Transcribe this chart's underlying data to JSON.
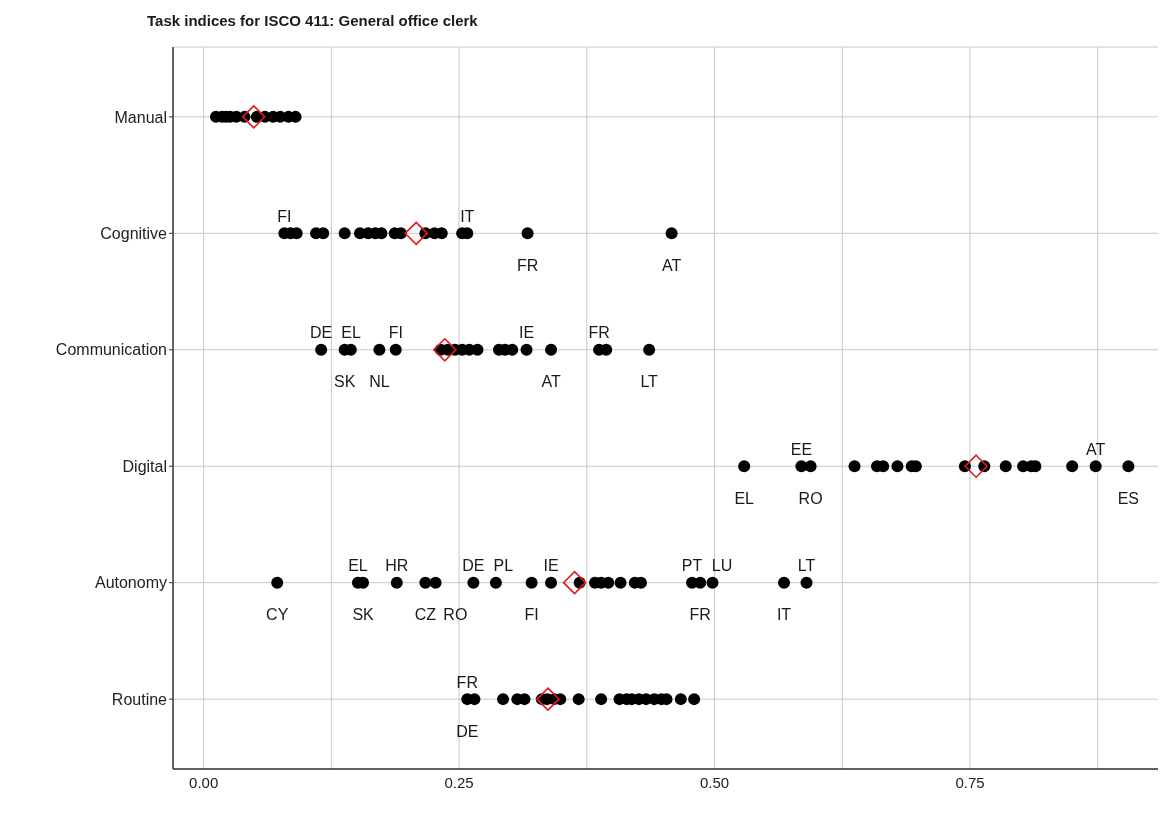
{
  "chart_data": {
    "type": "scatter",
    "title": "Task indices for ISCO 411: General office clerk",
    "orientation": "horizontal",
    "categories": [
      "Manual",
      "Cognitive",
      "Communication",
      "Digital",
      "Autonomy",
      "Routine"
    ],
    "xlim": [
      -0.03,
      0.934
    ],
    "xticks": [
      {
        "value": 0,
        "label": "0.00"
      },
      {
        "value": 0.125,
        "label": null
      },
      {
        "value": 0.25,
        "label": "0.25"
      },
      {
        "value": 0.375,
        "label": null
      },
      {
        "value": 0.5,
        "label": "0.50"
      },
      {
        "value": 0.625,
        "label": null
      },
      {
        "value": 0.75,
        "label": "0.75"
      },
      {
        "value": 0.875,
        "label": null
      }
    ],
    "grid": true,
    "series": [
      {
        "type": "scatter",
        "color": "#000000",
        "marker": "circle",
        "x": [
          "Manual",
          "Manual",
          "Manual",
          "Manual",
          "Manual",
          "Manual",
          "Manual",
          "Manual",
          "Manual",
          "Manual",
          "Manual",
          "Manual",
          "Cognitive",
          "Cognitive",
          "Cognitive",
          "Cognitive",
          "Cognitive",
          "Cognitive",
          "Cognitive",
          "Cognitive",
          "Cognitive",
          "Cognitive",
          "Cognitive",
          "Cognitive",
          "Cognitive",
          "Cognitive",
          "Cognitive",
          "Cognitive",
          "Cognitive",
          "Cognitive",
          "Cognitive",
          "Communication",
          "Communication",
          "Communication",
          "Communication",
          "Communication",
          "Communication",
          "Communication",
          "Communication",
          "Communication",
          "Communication",
          "Communication",
          "Communication",
          "Communication",
          "Communication",
          "Communication",
          "Communication",
          "Communication",
          "Communication",
          "Communication",
          "Digital",
          "Digital",
          "Digital",
          "Digital",
          "Digital",
          "Digital",
          "Digital",
          "Digital",
          "Digital",
          "Digital",
          "Digital",
          "Digital",
          "Digital",
          "Digital",
          "Digital",
          "Digital",
          "Digital",
          "Digital",
          "Autonomy",
          "Autonomy",
          "Autonomy",
          "Autonomy",
          "Autonomy",
          "Autonomy",
          "Autonomy",
          "Autonomy",
          "Autonomy",
          "Autonomy",
          "Autonomy",
          "Autonomy",
          "Autonomy",
          "Autonomy",
          "Autonomy",
          "Autonomy",
          "Autonomy",
          "Autonomy",
          "Autonomy",
          "Autonomy",
          "Autonomy",
          "Autonomy",
          "Routine",
          "Routine",
          "Routine",
          "Routine",
          "Routine",
          "Routine",
          "Routine",
          "Routine",
          "Routine",
          "Routine",
          "Routine",
          "Routine",
          "Routine",
          "Routine",
          "Routine",
          "Routine",
          "Routine",
          "Routine",
          "Routine",
          "Routine",
          "Routine"
        ],
        "values": [
          0.012,
          0.018,
          0.022,
          0.026,
          0.032,
          0.04,
          0.052,
          0.06,
          0.068,
          0.075,
          0.083,
          0.09,
          0.079,
          0.085,
          0.091,
          0.11,
          0.117,
          0.138,
          0.153,
          0.161,
          0.168,
          0.174,
          0.187,
          0.193,
          0.217,
          0.226,
          0.233,
          0.253,
          0.258,
          0.317,
          0.458,
          0.115,
          0.138,
          0.144,
          0.172,
          0.188,
          0.232,
          0.239,
          0.246,
          0.253,
          0.26,
          0.268,
          0.289,
          0.295,
          0.302,
          0.316,
          0.34,
          0.387,
          0.394,
          0.436,
          0.529,
          0.585,
          0.594,
          0.637,
          0.659,
          0.665,
          0.679,
          0.693,
          0.697,
          0.745,
          0.764,
          0.785,
          0.802,
          0.81,
          0.814,
          0.85,
          0.873,
          0.905,
          0.072,
          0.151,
          0.156,
          0.189,
          0.217,
          0.227,
          0.264,
          0.286,
          0.321,
          0.34,
          0.368,
          0.383,
          0.389,
          0.396,
          0.408,
          0.422,
          0.428,
          0.478,
          0.486,
          0.498,
          0.568,
          0.59,
          0.258,
          0.265,
          0.293,
          0.307,
          0.314,
          0.331,
          0.336,
          0.343,
          0.349,
          0.367,
          0.389,
          0.407,
          0.414,
          0.419,
          0.426,
          0.433,
          0.441,
          0.448,
          0.453,
          0.467,
          0.48
        ]
      },
      {
        "type": "scatter",
        "color": "#e41a1c",
        "marker": "diamond",
        "x": [
          "Manual",
          "Cognitive",
          "Communication",
          "Digital",
          "Autonomy",
          "Routine"
        ],
        "values": [
          0.049,
          0.208,
          0.236,
          0.756,
          0.363,
          0.337
        ]
      }
    ],
    "annotations": [
      {
        "text": "FI",
        "x": 0.079,
        "y": "Cognitive"
      },
      {
        "text": "FR",
        "x": 0.317,
        "y": "Cognitive"
      },
      {
        "text": "IT",
        "x": 0.258,
        "y": "Cognitive"
      },
      {
        "text": "AT",
        "x": 0.458,
        "y": "Cognitive"
      },
      {
        "text": "DE",
        "x": 0.115,
        "y": "Communication"
      },
      {
        "text": "SK",
        "x": 0.138,
        "y": "Communication"
      },
      {
        "text": "EL",
        "x": 0.144,
        "y": "Communication"
      },
      {
        "text": "NL",
        "x": 0.172,
        "y": "Communication"
      },
      {
        "text": "FI",
        "x": 0.188,
        "y": "Communication"
      },
      {
        "text": "AT",
        "x": 0.34,
        "y": "Communication"
      },
      {
        "text": "IE",
        "x": 0.316,
        "y": "Communication"
      },
      {
        "text": "LT",
        "x": 0.436,
        "y": "Communication"
      },
      {
        "text": "FR",
        "x": 0.387,
        "y": "Communication"
      },
      {
        "text": "EL",
        "x": 0.529,
        "y": "Digital"
      },
      {
        "text": "EE",
        "x": 0.585,
        "y": "Digital"
      },
      {
        "text": "RO",
        "x": 0.594,
        "y": "Digital"
      },
      {
        "text": "AT",
        "x": 0.873,
        "y": "Digital"
      },
      {
        "text": "ES",
        "x": 0.905,
        "y": "Digital"
      },
      {
        "text": "EL",
        "x": 0.151,
        "y": "Autonomy"
      },
      {
        "text": "CY",
        "x": 0.072,
        "y": "Autonomy"
      },
      {
        "text": "HR",
        "x": 0.189,
        "y": "Autonomy"
      },
      {
        "text": "SK",
        "x": 0.156,
        "y": "Autonomy"
      },
      {
        "text": "DE",
        "x": 0.264,
        "y": "Autonomy"
      },
      {
        "text": "CZ",
        "x": 0.217,
        "y": "Autonomy"
      },
      {
        "text": "PL",
        "x": 0.286,
        "y": "Autonomy"
      },
      {
        "text": "RO",
        "x": 0.227,
        "y": "Autonomy"
      },
      {
        "text": "IE",
        "x": 0.34,
        "y": "Autonomy"
      },
      {
        "text": "FI",
        "x": 0.321,
        "y": "Autonomy"
      },
      {
        "text": "PT",
        "x": 0.478,
        "y": "Autonomy"
      },
      {
        "text": "FR",
        "x": 0.486,
        "y": "Autonomy"
      },
      {
        "text": "LU",
        "x": 0.498,
        "y": "Autonomy"
      },
      {
        "text": "IT",
        "x": 0.568,
        "y": "Autonomy"
      },
      {
        "text": "LT",
        "x": 0.59,
        "y": "Autonomy"
      },
      {
        "text": "DE",
        "x": 0.258,
        "y": "Routine"
      },
      {
        "text": "FR",
        "x": 0.258,
        "y": "Routine"
      }
    ]
  }
}
